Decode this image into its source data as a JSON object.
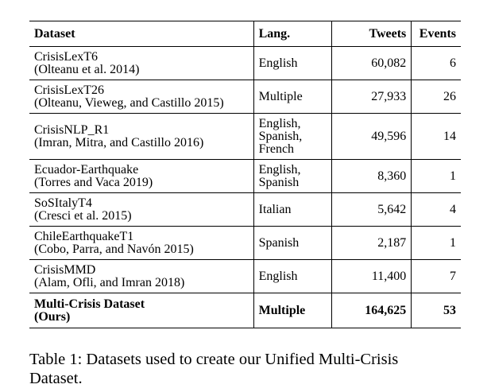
{
  "table": {
    "headers": [
      "Dataset",
      "Lang.",
      "Tweets",
      "Events"
    ],
    "rows": [
      {
        "name": "CrisisLexT6",
        "citation": "(Olteanu et al. 2014)",
        "lang": [
          "English"
        ],
        "tweets": "60,082",
        "events": "6"
      },
      {
        "name": "CrisisLexT26",
        "citation": "(Olteanu, Vieweg, and Castillo 2015)",
        "lang": [
          "Multiple"
        ],
        "tweets": "27,933",
        "events": "26"
      },
      {
        "name": "CrisisNLP_R1",
        "citation": "(Imran, Mitra, and Castillo 2016)",
        "lang": [
          "English,",
          "Spanish,",
          "French"
        ],
        "tweets": "49,596",
        "events": "14"
      },
      {
        "name": "Ecuador-Earthquake",
        "citation": "(Torres and Vaca 2019)",
        "lang": [
          "English,",
          "Spanish"
        ],
        "tweets": "8,360",
        "events": "1"
      },
      {
        "name": "SoSItalyT4",
        "citation": "(Cresci et al. 2015)",
        "lang": [
          "Italian"
        ],
        "tweets": "5,642",
        "events": "4"
      },
      {
        "name": "ChileEarthquakeT1",
        "citation": "(Cobo, Parra, and Navón 2015)",
        "lang": [
          "Spanish"
        ],
        "tweets": "2,187",
        "events": "1"
      },
      {
        "name": "CrisisMMD",
        "citation": "(Alam, Ofli, and Imran 2018)",
        "lang": [
          "English"
        ],
        "tweets": "11,400",
        "events": "7"
      }
    ],
    "total": {
      "name": "Multi-Crisis Dataset",
      "citation": "(Ours)",
      "lang": [
        "Multiple"
      ],
      "tweets": "164,625",
      "events": "53"
    }
  },
  "caption": {
    "line1": "Table 1: Datasets used to create our Unified Multi-Crisis",
    "line2": "Dataset."
  }
}
